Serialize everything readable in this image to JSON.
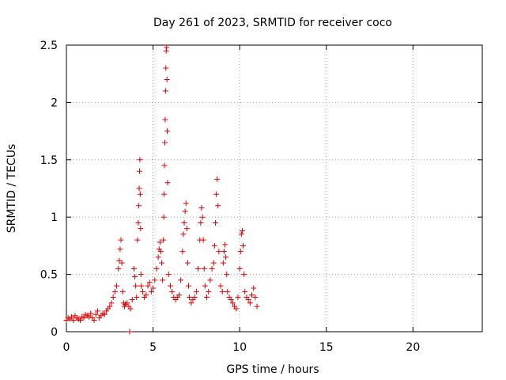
{
  "chart_data": {
    "type": "scatter",
    "title": "Day 261 of 2023, SRMTID for receiver coco",
    "xlabel": "GPS time / hours",
    "ylabel": "SRMTID / TECUs",
    "xlim": [
      0,
      24
    ],
    "ylim": [
      0,
      2.5
    ],
    "xticks": [
      0,
      5,
      10,
      15,
      20
    ],
    "xtick_labels": [
      "0",
      "5",
      "10",
      "15",
      "20"
    ],
    "yticks": [
      0,
      0.5,
      1,
      1.5,
      2,
      2.5
    ],
    "ytick_labels": [
      "0",
      "0.5",
      "1",
      "1.5",
      "2",
      "2.5"
    ],
    "grid": true,
    "marker": "+",
    "series": [
      {
        "name": "SRMTID",
        "color": "#e00000",
        "x": [
          0.0,
          0.1,
          0.2,
          0.3,
          0.4,
          0.5,
          0.6,
          0.7,
          0.8,
          0.9,
          1.0,
          1.1,
          1.2,
          1.3,
          1.4,
          1.5,
          1.6,
          1.7,
          1.8,
          1.9,
          2.0,
          2.1,
          2.2,
          2.3,
          2.4,
          2.5,
          2.6,
          2.7,
          2.8,
          2.9,
          3.0,
          3.05,
          3.1,
          3.15,
          3.2,
          3.25,
          3.3,
          3.35,
          3.4,
          3.5,
          3.6,
          3.7,
          3.8,
          3.9,
          3.95,
          4.0,
          4.05,
          4.1,
          4.15,
          4.18,
          4.2,
          4.22,
          4.24,
          4.26,
          4.28,
          4.3,
          4.32,
          4.4,
          4.5,
          4.6,
          4.7,
          4.8,
          4.9,
          5.0,
          5.1,
          5.2,
          5.3,
          5.35,
          5.4,
          5.45,
          5.5,
          5.55,
          5.6,
          5.62,
          5.64,
          5.66,
          5.68,
          5.7,
          5.72,
          5.74,
          5.76,
          5.78,
          5.8,
          5.82,
          5.84,
          5.9,
          6.0,
          6.1,
          6.2,
          6.3,
          6.4,
          6.5,
          6.6,
          6.7,
          6.75,
          6.8,
          6.85,
          6.9,
          6.95,
          7.0,
          7.05,
          7.1,
          7.2,
          7.3,
          7.4,
          7.5,
          7.6,
          7.7,
          7.75,
          7.8,
          7.85,
          7.9,
          7.95,
          8.0,
          8.1,
          8.2,
          8.3,
          8.4,
          8.5,
          8.55,
          8.6,
          8.65,
          8.7,
          8.75,
          8.8,
          8.9,
          9.0,
          9.05,
          9.1,
          9.15,
          9.2,
          9.25,
          9.3,
          9.4,
          9.5,
          9.6,
          9.7,
          9.8,
          9.9,
          10.0,
          10.05,
          10.1,
          10.15,
          10.2,
          10.25,
          10.3,
          10.4,
          10.5,
          10.6,
          10.7,
          10.8,
          10.9,
          11.0,
          3.65
        ],
        "y": [
          0.1,
          0.12,
          0.11,
          0.13,
          0.1,
          0.14,
          0.12,
          0.11,
          0.1,
          0.13,
          0.12,
          0.15,
          0.14,
          0.13,
          0.16,
          0.12,
          0.1,
          0.15,
          0.18,
          0.12,
          0.14,
          0.16,
          0.15,
          0.18,
          0.2,
          0.22,
          0.25,
          0.3,
          0.35,
          0.4,
          0.55,
          0.62,
          0.72,
          0.8,
          0.6,
          0.35,
          0.25,
          0.22,
          0.24,
          0.25,
          0.22,
          0.2,
          0.28,
          0.55,
          0.48,
          0.4,
          0.3,
          0.8,
          0.95,
          1.1,
          1.25,
          1.4,
          1.5,
          1.2,
          0.9,
          0.5,
          0.4,
          0.35,
          0.3,
          0.32,
          0.4,
          0.43,
          0.35,
          0.38,
          0.45,
          0.55,
          0.65,
          0.72,
          0.78,
          0.7,
          0.6,
          0.45,
          0.8,
          1.0,
          1.2,
          1.45,
          1.65,
          1.85,
          2.1,
          2.3,
          2.45,
          2.48,
          2.2,
          1.75,
          1.3,
          0.5,
          0.4,
          0.35,
          0.3,
          0.28,
          0.3,
          0.32,
          0.45,
          0.7,
          0.85,
          0.95,
          1.05,
          1.12,
          0.9,
          0.6,
          0.4,
          0.3,
          0.25,
          0.28,
          0.3,
          0.35,
          0.55,
          0.8,
          0.95,
          1.08,
          1.0,
          0.8,
          0.55,
          0.4,
          0.3,
          0.35,
          0.45,
          0.55,
          0.6,
          0.75,
          0.95,
          1.2,
          1.33,
          1.1,
          0.7,
          0.4,
          0.35,
          0.6,
          0.7,
          0.76,
          0.65,
          0.5,
          0.35,
          0.3,
          0.28,
          0.25,
          0.22,
          0.2,
          0.3,
          0.55,
          0.7,
          0.85,
          0.88,
          0.75,
          0.5,
          0.35,
          0.3,
          0.28,
          0.25,
          0.32,
          0.38,
          0.3,
          0.22,
          0.0
        ]
      }
    ]
  }
}
